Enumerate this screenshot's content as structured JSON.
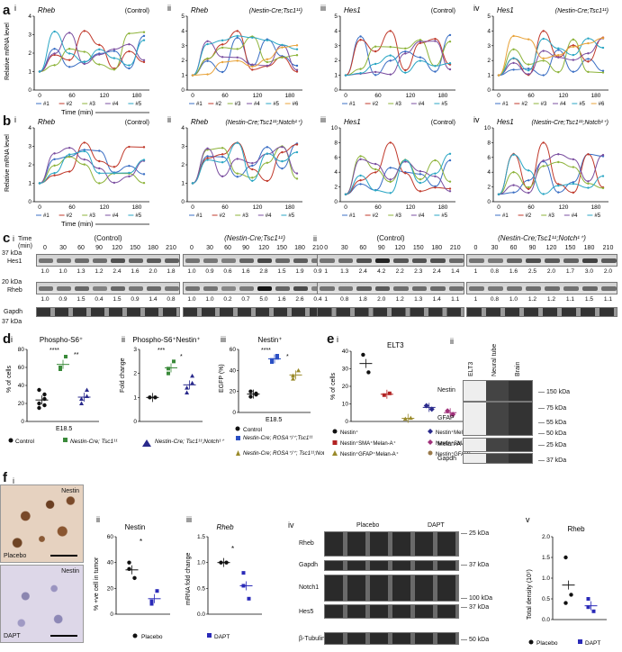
{
  "panel_a": {
    "letter": "a",
    "plots": [
      {
        "roman": "i",
        "gene": "Rheb",
        "cond": "(Control)",
        "yticks": [
          "0",
          "1",
          "2",
          "3",
          "4"
        ],
        "ymax": 4,
        "n": 5
      },
      {
        "roman": "ii",
        "gene": "Rheb",
        "cond": "(Nestin-Cre;Tsc1¹¹)",
        "yticks": [
          "0",
          "1",
          "2",
          "3",
          "4",
          "5"
        ],
        "ymax": 5,
        "n": 6
      },
      {
        "roman": "iii",
        "gene": "Hes1",
        "cond": "(Control)",
        "yticks": [
          "0",
          "1",
          "2",
          "3",
          "4",
          "5"
        ],
        "ymax": 5,
        "n": 5
      },
      {
        "roman": "iv",
        "gene": "Hes1",
        "cond": "(Nestin-Cre;Tsc1¹¹)",
        "yticks": [
          "0",
          "1",
          "2",
          "3",
          "4",
          "5"
        ],
        "ymax": 5,
        "n": 6
      }
    ],
    "ylabel": "Relative mRNA level",
    "xlabel": "Time (min)"
  },
  "panel_b": {
    "letter": "b",
    "plots": [
      {
        "roman": "i",
        "gene": "Rheb",
        "cond": "(Control)",
        "yticks": [
          "0",
          "1",
          "2",
          "3",
          "4"
        ],
        "ymax": 4,
        "n": 5
      },
      {
        "roman": "ii",
        "gene": "Rheb",
        "cond": "(Nestin-Cre;Tsc1¹¹;Notch¹⁺)",
        "yticks": [
          "0",
          "1",
          "2",
          "3",
          "4"
        ],
        "ymax": 4,
        "n": 5
      },
      {
        "roman": "iii",
        "gene": "Hes1",
        "cond": "(Control)",
        "yticks": [
          "0",
          "2",
          "4",
          "6",
          "8",
          "10"
        ],
        "ymax": 10,
        "n": 5
      },
      {
        "roman": "iv",
        "gene": "Hes1",
        "cond": "(Nestin-Cre;Tsc1¹¹;Notch¹⁺)",
        "yticks": [
          "0",
          "2",
          "4",
          "6",
          "8",
          "10"
        ],
        "ymax": 10,
        "n": 5
      }
    ],
    "ylabel": "Relative mRNA level",
    "xlabel": "Time (min)"
  },
  "xticks": [
    "0",
    "60",
    "120",
    "180"
  ],
  "series_labels": [
    "#1",
    "#2",
    "#3",
    "#4",
    "#5",
    "#6"
  ],
  "series_colors": [
    "#3b6fc4",
    "#c0392b",
    "#8db33a",
    "#7b4fa0",
    "#2aa6c4",
    "#e8a33a"
  ],
  "panel_c": {
    "letter": "c",
    "roman_i": "i",
    "roman_ii": "ii",
    "time_label": "Time (min)",
    "times": [
      "0",
      "30",
      "60",
      "90",
      "120",
      "150",
      "180",
      "210"
    ],
    "blots": [
      {
        "cond": "(Control)",
        "hes1": [
          "1.0",
          "1.0",
          "1.3",
          "1.2",
          "2.4",
          "1.6",
          "2.0",
          "1.8"
        ],
        "rheb": [
          "1.0",
          "0.9",
          "1.5",
          "0.4",
          "1.5",
          "0.9",
          "1.4",
          "0.8"
        ]
      },
      {
        "cond": "(Nestin-Cre;Tsc1¹¹)",
        "hes1": [
          "1.0",
          "0.9",
          "0.6",
          "1.6",
          "2.8",
          "1.5",
          "1.9",
          "0.9"
        ],
        "rheb": [
          "1.0",
          "1.0",
          "0.2",
          "0.7",
          "5.0",
          "1.6",
          "2.6",
          "0.4"
        ]
      },
      {
        "cond": "(Control)",
        "hes1": [
          "1",
          "1.3",
          "2.4",
          "4.2",
          "2.2",
          "2.3",
          "2.4",
          "1.4"
        ],
        "rheb": [
          "1",
          "0.8",
          "1.8",
          "2.0",
          "1.2",
          "1.3",
          "1.4",
          "1.1"
        ]
      },
      {
        "cond": "(Nestin-Cre;Tsc1¹¹;Notch¹⁺)",
        "hes1": [
          "1",
          "0.8",
          "1.6",
          "2.5",
          "2.0",
          "1.7",
          "3.0",
          "2.0"
        ],
        "rheb": [
          "1",
          "0.8",
          "1.0",
          "1.2",
          "1.2",
          "1.1",
          "1.5",
          "1.1"
        ]
      }
    ],
    "kda_37a": "37 kDa",
    "kda_20": "20 kDa",
    "kda_37b": "37 kDa",
    "hes1": "Hes1",
    "rheb": "Rheb",
    "gapdh": "Gapdh"
  },
  "panel_d": {
    "letter": "d",
    "i": {
      "roman": "i",
      "title": "Phospho-S6⁺",
      "ylabel": "% of cells",
      "yticks": [
        "0",
        "20",
        "40",
        "60",
        "80"
      ],
      "xlabel": "E18.5",
      "sig1": "****",
      "sig2": "**"
    },
    "ii": {
      "roman": "ii",
      "title": "Phospho-S6⁺Nestin⁺",
      "ylabel": "Fold change",
      "yticks": [
        "0",
        "1",
        "2",
        "3"
      ],
      "sig1": "***",
      "sig2": "*"
    },
    "iii": {
      "roman": "iii",
      "title": "Nestin⁺",
      "ylabel": "EGFP (%)",
      "yticks": [
        "0",
        "20",
        "40",
        "60"
      ],
      "xlabel": "E18.5",
      "sig1": "****",
      "sig2": "*"
    },
    "legend_control": "Control",
    "legend_tsc": "Nestin-Cre; Tsc1¹¹",
    "legend_notch": "Nestin-Cre; Tsc1¹¹;Notch¹⁺",
    "legend_iii_control": "Control",
    "legend_iii_rosa": "Nestin-Cre; ROSA⁺/⁺;Tsc1¹¹",
    "legend_iii_rosa_notch": "Nestin-Cre; ROSA⁺/⁺; Tsc1¹¹;Notch¹⁺"
  },
  "panel_e": {
    "letter": "e",
    "i": {
      "roman": "i",
      "title": "ELT3",
      "ylabel": "% of cells",
      "yticks": [
        "0",
        "10",
        "20",
        "30",
        "40"
      ]
    },
    "legend": [
      "Nestin⁺",
      "Nestin⁺SMA⁺Melan-A⁺",
      "Nestin⁺GFAP⁺Melan-A⁺",
      "Nestin⁺Melan-A⁺",
      "Nestin⁺SMA⁺",
      "Nestin⁺GFAP⁺"
    ],
    "ii": {
      "roman": "ii",
      "lanes": [
        "ELT3",
        "Neural tube",
        "Brain"
      ],
      "rows": [
        "Nestin",
        "GFAP",
        "Melan-A",
        "Gapdh"
      ],
      "kda": [
        "150 kDa",
        "75 kDa",
        "55 kDa",
        "50 kDa",
        "25 kDa",
        "37 kDa"
      ]
    }
  },
  "panel_f": {
    "letter": "f",
    "i": {
      "roman": "i",
      "top_label": "Nestin",
      "top_caption": "Placebo",
      "bottom_label": "Nestin",
      "bottom_caption": "DAPT"
    },
    "ii": {
      "roman": "ii",
      "title": "Nestin",
      "ylabel": "% +ve cell in tumor",
      "yticks": [
        "0",
        "20",
        "40",
        "60"
      ],
      "sig": "*"
    },
    "iii": {
      "roman": "iii",
      "title": "Rheb",
      "ylabel": "mRNA fold change",
      "yticks": [
        "0.0",
        "0.5",
        "1.0",
        "1.5"
      ],
      "sig": "*"
    },
    "iv": {
      "roman": "iv",
      "placebo": "Placebo",
      "dapt": "DAPT",
      "rows": [
        "Rheb",
        "Gapdh",
        "Notch1",
        "Hes5",
        "β-Tubulin"
      ],
      "kda": [
        "25 kDa",
        "37 kDa",
        "100 kDa",
        "37 kDa",
        "50 kDa"
      ]
    },
    "v": {
      "roman": "v",
      "title": "Rheb",
      "ylabel": "Total density (10⁷)",
      "yticks": [
        "0.0",
        "0.5",
        "1.0",
        "1.5",
        "2.0"
      ]
    },
    "legend_placebo": "Placebo",
    "legend_dapt": "DAPT"
  }
}
